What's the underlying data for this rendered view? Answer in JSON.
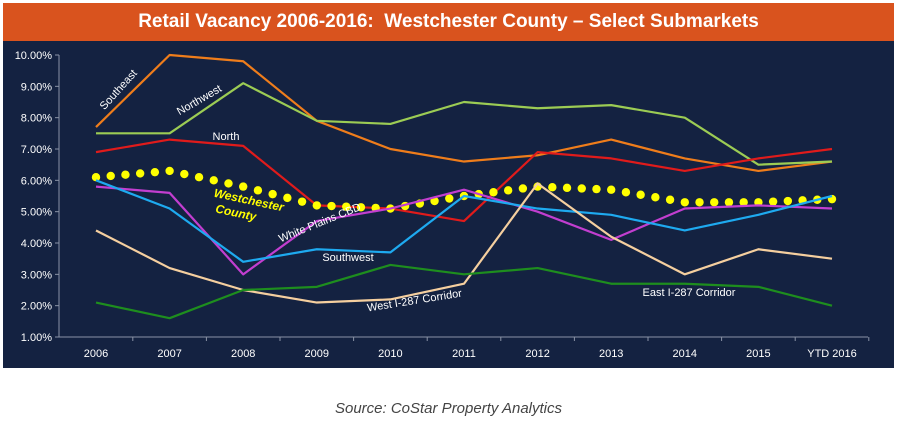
{
  "title": "Retail Vacancy 2006-2016:  Westchester County – Select Submarkets",
  "source": "Source:  CoStar Property Analytics",
  "colors": {
    "title_bg": "#d9531e",
    "plot_bg": "#142241",
    "text": "#ffffff",
    "county_label": "#ffff00"
  },
  "chart_data": {
    "type": "line",
    "title": "Retail Vacancy 2006-2016:  Westchester County – Select Submarkets",
    "xlabel": "",
    "ylabel": "",
    "categories": [
      "2006",
      "2007",
      "2008",
      "2009",
      "2010",
      "2011",
      "2012",
      "2013",
      "2014",
      "2015",
      "YTD 2016"
    ],
    "ylim": [
      0.01,
      0.1
    ],
    "yticks": [
      "1.00%",
      "2.00%",
      "3.00%",
      "4.00%",
      "5.00%",
      "6.00%",
      "7.00%",
      "8.00%",
      "9.00%",
      "10.00%"
    ],
    "grid": false,
    "legend": "none (series labelled inline)",
    "series": [
      {
        "name": "Southeast",
        "color": "#ef7d1b",
        "values": [
          0.077,
          0.1,
          0.098,
          0.079,
          0.07,
          0.066,
          0.068,
          0.073,
          0.067,
          0.063,
          0.066
        ]
      },
      {
        "name": "Northwest",
        "color": "#9ccc54",
        "values": [
          0.075,
          0.075,
          0.091,
          0.079,
          0.078,
          0.085,
          0.083,
          0.084,
          0.08,
          0.065,
          0.066
        ]
      },
      {
        "name": "North",
        "color": "#e01b1b",
        "values": [
          0.069,
          0.073,
          0.071,
          0.052,
          0.051,
          0.047,
          0.069,
          0.067,
          0.063,
          0.067,
          0.07
        ]
      },
      {
        "name": "Westchester County",
        "color": "#ffff00",
        "style": "dotted",
        "values": [
          0.061,
          0.063,
          0.058,
          0.052,
          0.051,
          0.055,
          0.058,
          0.057,
          0.053,
          0.053,
          0.054
        ]
      },
      {
        "name": "White Plains CBD",
        "color": "#c23ed0",
        "values": [
          0.058,
          0.056,
          0.03,
          0.047,
          0.051,
          0.057,
          0.05,
          0.041,
          0.051,
          0.052,
          0.051
        ]
      },
      {
        "name": "Southwest",
        "color": "#1eaaf0",
        "values": [
          0.06,
          0.051,
          0.034,
          0.038,
          0.037,
          0.055,
          0.051,
          0.049,
          0.044,
          0.049,
          0.055
        ]
      },
      {
        "name": "West I-287 Corridor",
        "color": "#f5cf9f",
        "values": [
          0.044,
          0.032,
          0.025,
          0.021,
          0.022,
          0.027,
          0.059,
          0.042,
          0.03,
          0.038,
          0.035
        ]
      },
      {
        "name": "East I-287 Corridor",
        "color": "#1e8e1e",
        "values": [
          0.021,
          0.016,
          0.025,
          0.026,
          0.033,
          0.03,
          0.032,
          0.027,
          0.027,
          0.026,
          0.02
        ]
      }
    ],
    "annotations": [
      {
        "series": "Southeast",
        "text": "Southeast"
      },
      {
        "series": "Northwest",
        "text": "Northwest"
      },
      {
        "series": "North",
        "text": "North"
      },
      {
        "series": "Westchester County",
        "text": "Westchester County"
      },
      {
        "series": "White Plains CBD",
        "text": "White Plains CBD"
      },
      {
        "series": "Southwest",
        "text": "Southwest"
      },
      {
        "series": "West I-287 Corridor",
        "text": "West I-287 Corridor"
      },
      {
        "series": "East I-287 Corridor",
        "text": "East I-287 Corridor"
      }
    ]
  }
}
